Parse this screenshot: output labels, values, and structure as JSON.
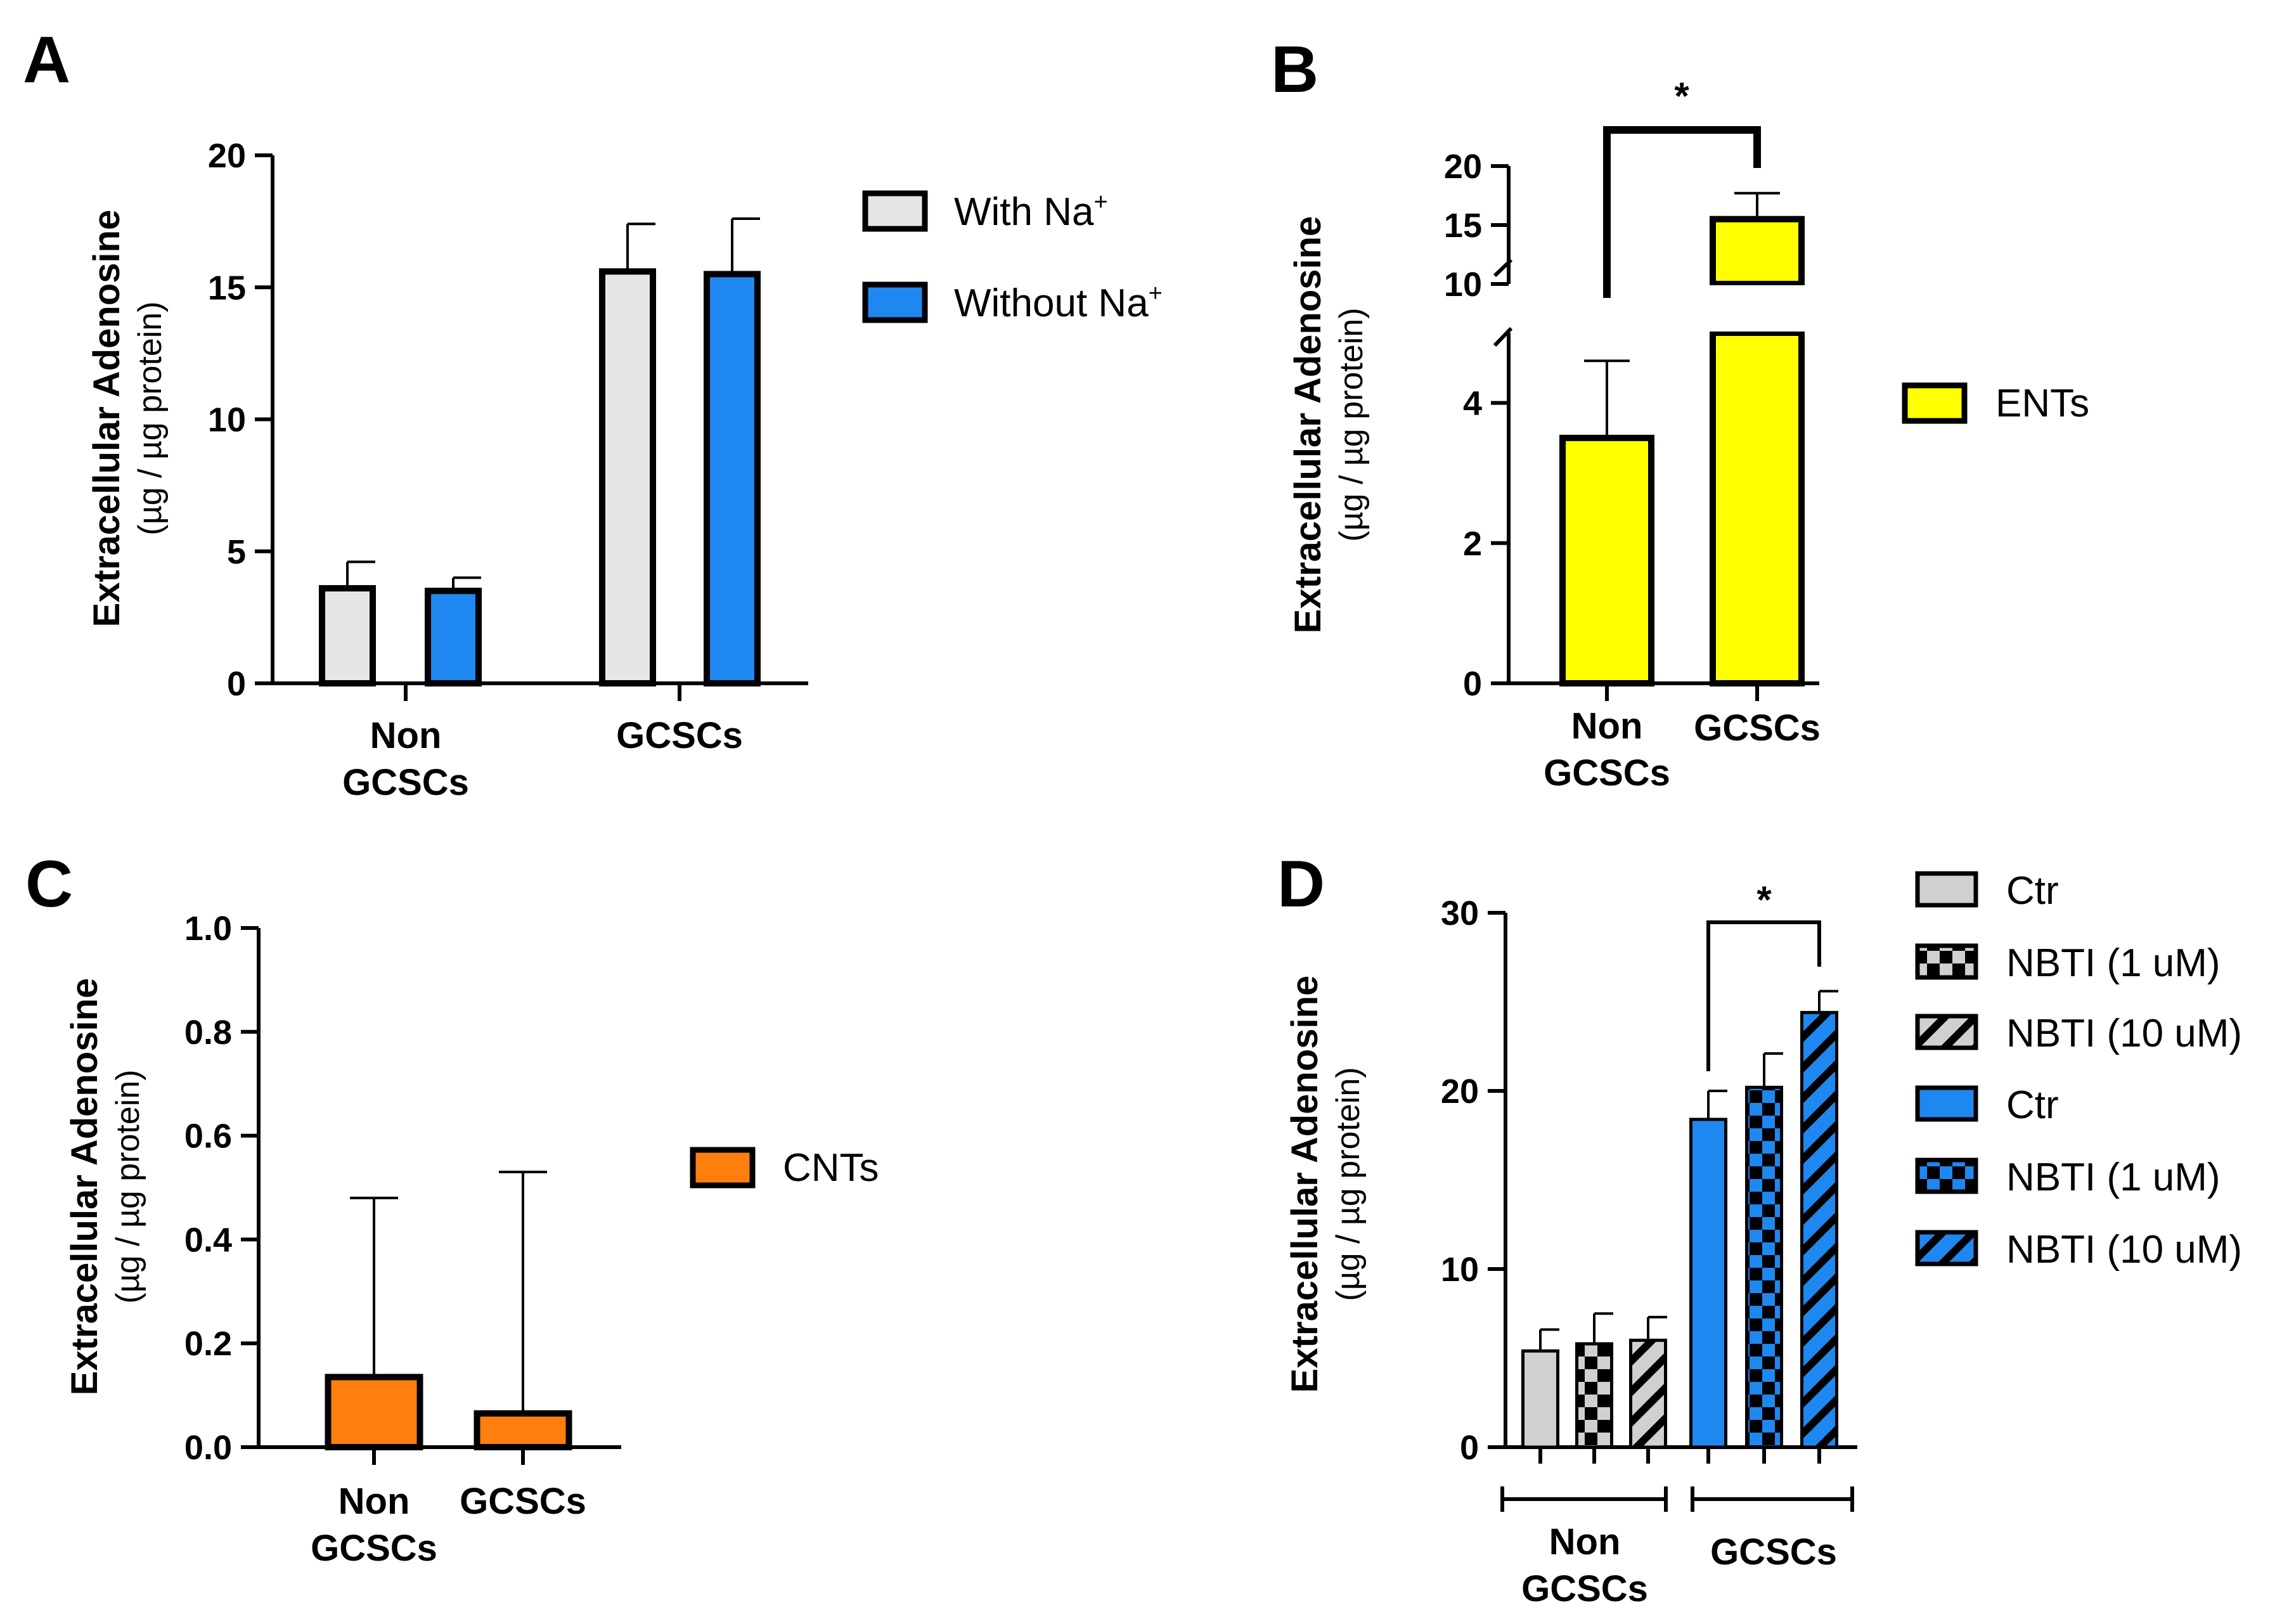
{
  "chart_data": [
    {
      "panel": "A",
      "type": "bar",
      "ylabel": "Extracellular Adenosine",
      "ylabel_unit": "(µg / µg protein)",
      "ylim": [
        0,
        20
      ],
      "yticks": [
        0,
        5,
        10,
        15,
        20
      ],
      "categories": [
        [
          "Non",
          "GCSCs"
        ],
        [
          "GCSCs"
        ]
      ],
      "series": [
        {
          "name": "With Na",
          "superscript": "+",
          "color": "#e6e6e6",
          "values": [
            3.6,
            15.6
          ],
          "errors": [
            1.0,
            1.8
          ]
        },
        {
          "name": "Without Na",
          "superscript": "+",
          "color": "#1e88f0",
          "values": [
            3.5,
            15.5
          ],
          "errors": [
            0.5,
            2.1
          ]
        }
      ],
      "legend_position": "right"
    },
    {
      "panel": "B",
      "type": "bar",
      "ylabel": "Extracellular Adenosine",
      "ylabel_unit": "(µg / µg protein)",
      "broken_axis": {
        "lower": [
          0,
          5
        ],
        "upper": [
          10,
          20
        ]
      },
      "yticks_lower": [
        0,
        2,
        4
      ],
      "yticks_upper": [
        10,
        15,
        20
      ],
      "categories": [
        [
          "Non",
          "GCSCs"
        ],
        [
          "GCSCs"
        ]
      ],
      "series": [
        {
          "name": "ENTs",
          "color": "#ffff00",
          "values": [
            3.5,
            15.5
          ],
          "errors": [
            1.1,
            2.2
          ]
        }
      ],
      "significance": "*",
      "legend_position": "right"
    },
    {
      "panel": "C",
      "type": "bar",
      "ylabel": "Extracellular Adenosine",
      "ylabel_unit": "(µg / µg protein)",
      "ylim": [
        0,
        1.0
      ],
      "yticks": [
        "0.0",
        "0.2",
        "0.4",
        "0.6",
        "0.8",
        "1.0"
      ],
      "categories": [
        [
          "Non",
          "GCSCs"
        ],
        [
          "GCSCs"
        ]
      ],
      "series": [
        {
          "name": "CNTs",
          "color": "#ff7f0e",
          "values": [
            0.135,
            0.065
          ],
          "errors": [
            0.345,
            0.465
          ]
        }
      ],
      "legend_position": "right"
    },
    {
      "panel": "D",
      "type": "bar",
      "ylabel": "Extracellular Adenosine",
      "ylabel_unit": "(µg / µg protein)",
      "ylim": [
        0,
        30
      ],
      "yticks": [
        0,
        10,
        20,
        30
      ],
      "groups": [
        [
          "Non",
          "GCSCs"
        ],
        [
          "GCSCs"
        ]
      ],
      "series": [
        {
          "name": "Ctr",
          "pattern": "solid",
          "color": "#d0d0d0",
          "group": 0,
          "value": 5.4,
          "error": 1.2
        },
        {
          "name": "NBTI (1 uM)",
          "pattern": "checker",
          "color": "#d0d0d0",
          "group": 0,
          "value": 5.8,
          "error": 1.7
        },
        {
          "name": "NBTI (10 uM)",
          "pattern": "diagonal",
          "color": "#d0d0d0",
          "group": 0,
          "value": 6.0,
          "error": 1.3
        },
        {
          "name": "Ctr",
          "pattern": "solid",
          "color": "#1e88f0",
          "group": 1,
          "value": 18.4,
          "error": 1.6
        },
        {
          "name": "NBTI (1 uM)",
          "pattern": "checker",
          "color": "#1e88f0",
          "group": 1,
          "value": 20.2,
          "error": 1.9
        },
        {
          "name": "NBTI (10 uM)",
          "pattern": "diagonal",
          "color": "#1e88f0",
          "group": 1,
          "value": 24.4,
          "error": 1.2
        }
      ],
      "significance": "*",
      "legend_position": "right"
    }
  ]
}
